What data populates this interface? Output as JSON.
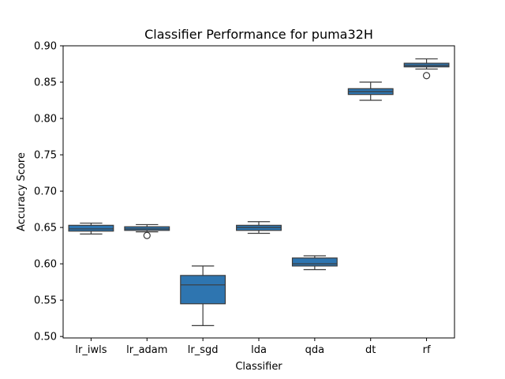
{
  "chart_data": {
    "type": "box",
    "title": "Classifier Performance for puma32H",
    "xlabel": "Classifier",
    "ylabel": "Accuracy Score",
    "ylim": [
      0.498,
      0.9
    ],
    "yticks": [
      "0.50",
      "0.55",
      "0.60",
      "0.65",
      "0.70",
      "0.75",
      "0.80",
      "0.85",
      "0.90"
    ],
    "grid": false,
    "box_color": "#2e75b0",
    "line_color": "#3b3b3b",
    "categories": [
      "lr_iwls",
      "lr_adam",
      "lr_sgd",
      "lda",
      "qda",
      "dt",
      "rf"
    ],
    "boxes": [
      {
        "category": "lr_iwls",
        "whisker_low": 0.641,
        "q1": 0.645,
        "median": 0.648,
        "q3": 0.653,
        "whisker_high": 0.656,
        "outliers": []
      },
      {
        "category": "lr_adam",
        "whisker_low": 0.644,
        "q1": 0.646,
        "median": 0.648,
        "q3": 0.651,
        "whisker_high": 0.654,
        "outliers": [
          0.639
        ]
      },
      {
        "category": "lr_sgd",
        "whisker_low": 0.515,
        "q1": 0.545,
        "median": 0.571,
        "q3": 0.584,
        "whisker_high": 0.597,
        "outliers": []
      },
      {
        "category": "lda",
        "whisker_low": 0.642,
        "q1": 0.646,
        "median": 0.65,
        "q3": 0.653,
        "whisker_high": 0.658,
        "outliers": []
      },
      {
        "category": "qda",
        "whisker_low": 0.592,
        "q1": 0.597,
        "median": 0.6,
        "q3": 0.608,
        "whisker_high": 0.611,
        "outliers": []
      },
      {
        "category": "dt",
        "whisker_low": 0.825,
        "q1": 0.833,
        "median": 0.837,
        "q3": 0.841,
        "whisker_high": 0.85,
        "outliers": []
      },
      {
        "category": "rf",
        "whisker_low": 0.868,
        "q1": 0.871,
        "median": 0.873,
        "q3": 0.876,
        "whisker_high": 0.882,
        "outliers": [
          0.859
        ]
      }
    ]
  }
}
